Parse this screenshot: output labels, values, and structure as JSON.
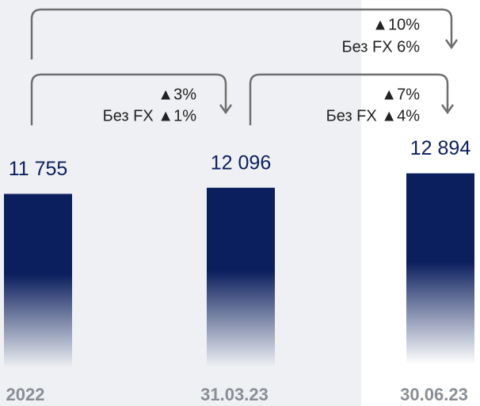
{
  "chart_data": {
    "type": "bar",
    "categories": [
      "2022",
      "31.03.23",
      "30.06.23"
    ],
    "values": [
      11755,
      12096,
      12894
    ],
    "value_labels": [
      "11 755",
      "12 096",
      "12 894"
    ],
    "color": "#0b1f5e",
    "ylim": [
      0,
      22500
    ],
    "annotations": [
      {
        "text": "▲10%",
        "subtext": "Без FX 6%"
      },
      {
        "text": "▲3%",
        "subtext": "Без FX ▲1%"
      },
      {
        "text": "▲7%",
        "subtext": "Без FX ▲4%"
      }
    ]
  }
}
